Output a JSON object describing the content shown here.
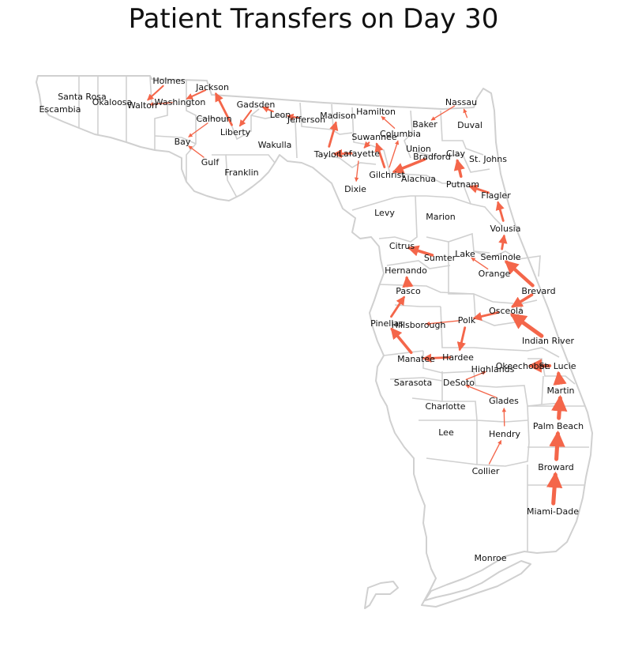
{
  "title": "Patient Transfers on Day 30",
  "colors": {
    "arrow": "#f4664a",
    "county_border": "#d0d0d0",
    "background": "#ffffff"
  },
  "counties": [
    "Escambia",
    "Santa Rosa",
    "Okaloosa",
    "Walton",
    "Holmes",
    "Washington",
    "Jackson",
    "Calhoun",
    "Bay",
    "Gulf",
    "Liberty",
    "Gadsden",
    "Franklin",
    "Wakulla",
    "Leon",
    "Jefferson",
    "Madison",
    "Taylor",
    "Hamilton",
    "Suwannee",
    "Lafayette",
    "Dixie",
    "Columbia",
    "Baker",
    "Nassau",
    "Duval",
    "Union",
    "Bradford",
    "Clay",
    "St. Johns",
    "Gilchrist",
    "Alachua",
    "Putnam",
    "Flagler",
    "Levy",
    "Marion",
    "Volusia",
    "Citrus",
    "Sumter",
    "Lake",
    "Seminole",
    "Orange",
    "Hernando",
    "Pasco",
    "Brevard",
    "Osceola",
    "Pinellas",
    "Hillsborough",
    "Polk",
    "Indian River",
    "Manatee",
    "Hardee",
    "Highlands",
    "Okeechobee",
    "St. Lucie",
    "Sarasota",
    "DeSoto",
    "Martin",
    "Glades",
    "Charlotte",
    "Lee",
    "Hendry",
    "Palm Beach",
    "Collier",
    "Broward",
    "Miami-Dade",
    "Monroe"
  ],
  "transfers": [
    {
      "from": "Gadsden",
      "to": "Liberty",
      "volume": 2
    },
    {
      "from": "Liberty",
      "to": "Jackson",
      "volume": 3
    },
    {
      "from": "Jackson",
      "to": "Washington",
      "volume": 2
    },
    {
      "from": "Holmes",
      "to": "Walton",
      "volume": 2
    },
    {
      "from": "Washington",
      "to": "Walton",
      "volume": 1
    },
    {
      "from": "Calhoun",
      "to": "Bay",
      "volume": 1
    },
    {
      "from": "Gulf",
      "to": "Bay",
      "volume": 1
    },
    {
      "from": "Leon",
      "to": "Gadsden",
      "volume": 2
    },
    {
      "from": "Jefferson",
      "to": "Leon",
      "volume": 2
    },
    {
      "from": "Taylor",
      "to": "Madison",
      "volume": 3
    },
    {
      "from": "Lafayette",
      "to": "Taylor",
      "volume": 3
    },
    {
      "from": "Lafayette",
      "to": "Dixie",
      "volume": 1
    },
    {
      "from": "Gilchrist",
      "to": "Suwannee",
      "volume": 3
    },
    {
      "from": "Suwannee",
      "to": "Lafayette",
      "volume": 2
    },
    {
      "from": "Columbia",
      "to": "Hamilton",
      "volume": 1
    },
    {
      "from": "Gilchrist",
      "to": "Columbia",
      "volume": 1
    },
    {
      "from": "Nassau",
      "to": "Baker",
      "volume": 1
    },
    {
      "from": "Duval",
      "to": "Nassau",
      "volume": 1
    },
    {
      "from": "Bradford",
      "to": "Gilchrist",
      "volume": 4
    },
    {
      "from": "Putnam",
      "to": "Clay",
      "volume": 4
    },
    {
      "from": "Flagler",
      "to": "Putnam",
      "volume": 3
    },
    {
      "from": "Volusia",
      "to": "Flagler",
      "volume": 3
    },
    {
      "from": "Seminole",
      "to": "Volusia",
      "volume": 3
    },
    {
      "from": "Brevard",
      "to": "Seminole",
      "volume": 5
    },
    {
      "from": "Orange",
      "to": "Lake",
      "volume": 1
    },
    {
      "from": "Sumter",
      "to": "Citrus",
      "volume": 4
    },
    {
      "from": "Pasco",
      "to": "Hernando",
      "volume": 4
    },
    {
      "from": "Pinellas",
      "to": "Pasco",
      "volume": 3
    },
    {
      "from": "Manatee",
      "to": "Pinellas",
      "volume": 4
    },
    {
      "from": "Hardee",
      "to": "Manatee",
      "volume": 3
    },
    {
      "from": "Polk",
      "to": "Hardee",
      "volume": 3
    },
    {
      "from": "Osceola",
      "to": "Polk",
      "volume": 3
    },
    {
      "from": "Polk",
      "to": "Hillsborough",
      "volume": 1
    },
    {
      "from": "Brevard",
      "to": "Osceola",
      "volume": 4
    },
    {
      "from": "Indian River",
      "to": "Osceola",
      "volume": 6
    },
    {
      "from": "St. Lucie",
      "to": "Okeechobee",
      "volume": 5
    },
    {
      "from": "Martin",
      "to": "St. Lucie",
      "volume": 5
    },
    {
      "from": "Palm Beach",
      "to": "Martin",
      "volume": 6
    },
    {
      "from": "Broward",
      "to": "Palm Beach",
      "volume": 6
    },
    {
      "from": "Miami-Dade",
      "to": "Broward",
      "volume": 6
    },
    {
      "from": "Glades",
      "to": "DeSoto",
      "volume": 1
    },
    {
      "from": "Hendry",
      "to": "Glades",
      "volume": 1
    },
    {
      "from": "Collier",
      "to": "Hendry",
      "volume": 1
    },
    {
      "from": "DeSoto",
      "to": "Highlands",
      "volume": 1
    }
  ]
}
